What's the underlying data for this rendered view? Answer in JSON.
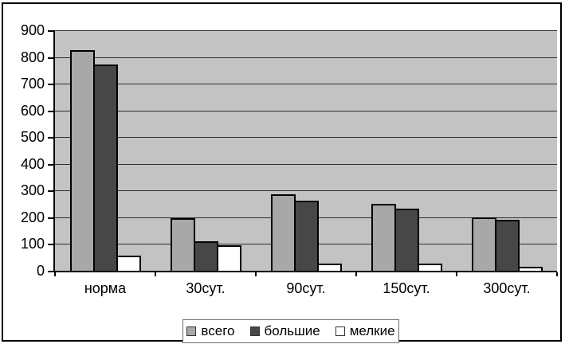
{
  "chart_data": {
    "type": "bar",
    "title": "",
    "xlabel": "",
    "ylabel": "",
    "categories": [
      "норма",
      "30сут.",
      "90сут.",
      "150сут.",
      "300сут."
    ],
    "series": [
      {
        "name": "всего",
        "color": "#a8a8a8",
        "values": [
          820,
          190,
          280,
          245,
          195
        ]
      },
      {
        "name": "большие",
        "color": "#474747",
        "values": [
          765,
          105,
          255,
          225,
          185
        ]
      },
      {
        "name": "мелкие",
        "color": "#ffffff",
        "values": [
          50,
          90,
          20,
          20,
          10
        ]
      }
    ],
    "ylim": [
      0,
      900
    ],
    "ytick_step": 100,
    "grid": true,
    "legend_position": "bottom",
    "colors": {
      "plot_background": "#c3c3c3",
      "gridline": "#2e2e2e",
      "axis": "#000000",
      "bar_border": "#000000"
    }
  }
}
